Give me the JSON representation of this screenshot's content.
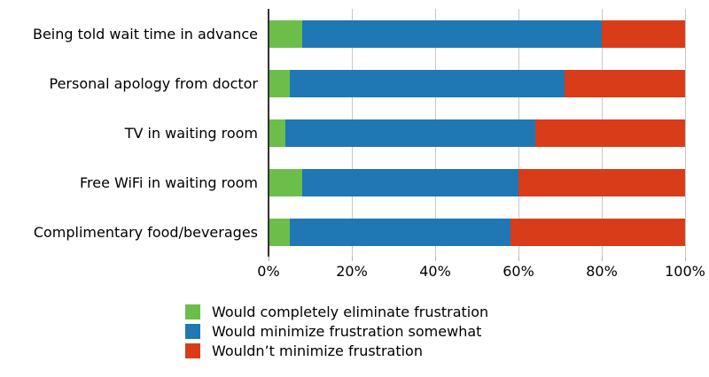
{
  "chart_data": {
    "type": "bar",
    "orientation": "horizontal",
    "stacked": true,
    "title": "",
    "xlabel": "",
    "ylabel": "",
    "xlim": [
      0,
      100
    ],
    "grid": "vertical",
    "legend_position": "bottom",
    "categories": [
      "Being told wait time in advance",
      "Personal apology from doctor",
      "TV in waiting room",
      "Free WiFi in waiting room",
      "Complimentary food/beverages"
    ],
    "series": [
      {
        "name": "Would completely eliminate frustration",
        "color": "#6cbe4b",
        "values": [
          8,
          5,
          4,
          8,
          5
        ]
      },
      {
        "name": "Would minimize frustration somewhat",
        "color": "#1f77b4",
        "values": [
          72,
          66,
          60,
          52,
          53
        ]
      },
      {
        "name": "Wouldn’t minimize frustration",
        "color": "#d93c19",
        "values": [
          20,
          29,
          36,
          40,
          42
        ]
      }
    ],
    "x_ticks": [
      "0%",
      "20%",
      "40%",
      "60%",
      "80%",
      "100%"
    ],
    "colors": {
      "gridline": "#c8c8c8",
      "axis_line": "#333333",
      "text": "#000000",
      "background": "#ffffff"
    }
  }
}
